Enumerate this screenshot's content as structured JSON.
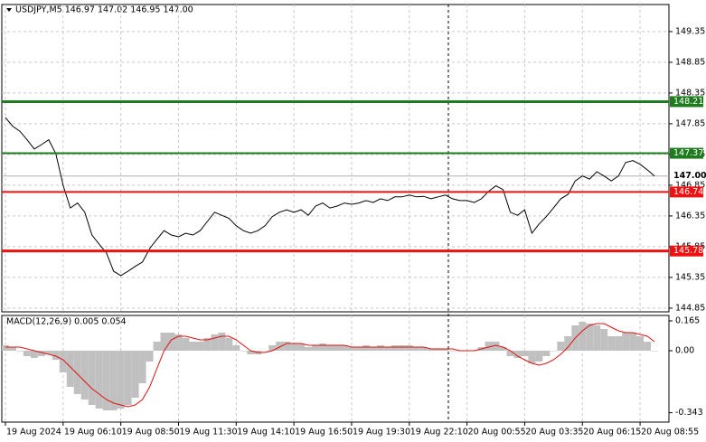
{
  "chart_data": [
    {
      "type": "line",
      "title": "USDJPY,M5  146.97 147.02 146.95 147.00",
      "x": [
        0,
        4,
        8,
        12,
        16,
        20,
        24,
        28,
        32,
        36,
        40,
        44,
        48,
        52,
        56,
        60,
        64,
        68,
        72,
        76,
        80,
        84,
        88,
        92,
        96,
        100,
        104,
        108,
        112,
        116,
        120,
        124,
        128,
        132,
        136,
        140,
        144,
        148,
        152,
        156,
        160,
        164,
        168,
        172,
        176,
        180,
        184,
        188,
        192,
        196,
        200,
        204,
        208,
        212,
        216,
        220,
        224,
        228,
        232,
        236,
        240,
        244,
        248,
        252,
        256,
        260,
        264,
        268,
        272,
        276,
        280,
        284,
        288,
        292,
        296,
        300,
        304,
        308,
        312,
        316,
        320,
        324,
        328,
        332,
        336,
        340,
        344,
        348,
        352,
        356,
        360
      ],
      "series": [
        {
          "color": "#000000",
          "values": [
            147.95,
            147.81,
            147.73,
            147.59,
            147.44,
            147.51,
            147.59,
            147.36,
            146.85,
            146.48,
            146.56,
            146.41,
            146.04,
            145.89,
            145.75,
            145.45,
            145.38,
            145.45,
            145.53,
            145.6,
            145.82,
            145.97,
            146.11,
            146.04,
            146.01,
            146.07,
            146.04,
            146.11,
            146.26,
            146.41,
            146.36,
            146.31,
            146.19,
            146.11,
            146.07,
            146.11,
            146.19,
            146.34,
            146.41,
            146.45,
            146.41,
            146.45,
            146.36,
            146.51,
            146.56,
            146.48,
            146.51,
            146.56,
            146.54,
            146.56,
            146.6,
            146.57,
            146.63,
            146.6,
            146.66,
            146.66,
            146.69,
            146.66,
            146.67,
            146.63,
            146.66,
            146.69,
            146.63,
            146.6,
            146.6,
            146.57,
            146.63,
            146.75,
            146.84,
            146.78,
            146.41,
            146.36,
            146.45,
            146.07,
            146.22,
            146.34,
            146.48,
            146.63,
            146.7,
            146.92,
            147.0,
            146.95,
            147.07,
            147.0,
            146.92,
            147.0,
            147.22,
            147.25,
            147.19,
            147.1,
            147.0
          ]
        }
      ],
      "xlim": [
        -2,
        368
      ],
      "xticks": [
        {
          "value": 0,
          "label": "19 Aug 2024"
        },
        {
          "value": 32,
          "label": "19 Aug 06:10"
        },
        {
          "value": 64,
          "label": "19 Aug 08:50"
        },
        {
          "value": 96,
          "label": "19 Aug 11:30"
        },
        {
          "value": 128,
          "label": "19 Aug 14:10"
        },
        {
          "value": 160,
          "label": "19 Aug 16:50"
        },
        {
          "value": 192,
          "label": "19 Aug 19:30"
        },
        {
          "value": 224,
          "label": "19 Aug 22:10"
        },
        {
          "value": 256,
          "label": "20 Aug 00:55"
        },
        {
          "value": 288,
          "label": "20 Aug 03:35"
        },
        {
          "value": 320,
          "label": "20 Aug 06:15"
        },
        {
          "value": 352,
          "label": "20 Aug 08:55"
        }
      ],
      "ylim": [
        144.79,
        149.79
      ],
      "yticks": [
        149.35,
        148.85,
        148.35,
        147.85,
        147.35,
        146.85,
        146.35,
        145.85,
        145.35,
        144.85
      ],
      "grid": true,
      "levels": [
        {
          "value": 148.21,
          "color": "#1e7b1e"
        },
        {
          "value": 147.37,
          "color": "#1e7b1e"
        },
        {
          "value": 146.74,
          "color": "#ee1111"
        },
        {
          "value": 145.78,
          "color": "#ee1111"
        }
      ],
      "current_price": {
        "value": 147,
        "label": "147.00"
      }
    },
    {
      "type": "macd",
      "title": "MACD(12,26,9) 0.005 0.054",
      "x": [
        0,
        4,
        8,
        12,
        16,
        20,
        24,
        28,
        32,
        36,
        40,
        44,
        48,
        52,
        56,
        60,
        64,
        68,
        72,
        76,
        80,
        84,
        88,
        92,
        96,
        100,
        104,
        108,
        112,
        116,
        120,
        124,
        128,
        132,
        136,
        140,
        144,
        148,
        152,
        156,
        160,
        164,
        168,
        172,
        176,
        180,
        184,
        188,
        192,
        196,
        200,
        204,
        208,
        212,
        216,
        220,
        224,
        228,
        232,
        236,
        240,
        244,
        248,
        252,
        256,
        260,
        264,
        268,
        272,
        276,
        280,
        284,
        288,
        292,
        296,
        300,
        304,
        308,
        312,
        316,
        320,
        324,
        328,
        332,
        336,
        340,
        344,
        348,
        352,
        356,
        360
      ],
      "series": [
        {
          "type": "bar",
          "color": "#c0c0c0",
          "values": [
            0.03,
            0.02,
            0.0,
            -0.03,
            -0.04,
            -0.03,
            -0.02,
            -0.05,
            -0.12,
            -0.2,
            -0.24,
            -0.27,
            -0.3,
            -0.32,
            -0.33,
            -0.33,
            -0.32,
            -0.3,
            -0.26,
            -0.18,
            -0.06,
            0.05,
            0.1,
            0.1,
            0.09,
            0.07,
            0.05,
            0.05,
            0.07,
            0.09,
            0.1,
            0.07,
            0.03,
            0.0,
            -0.02,
            -0.02,
            0.0,
            0.03,
            0.05,
            0.05,
            0.04,
            0.04,
            0.02,
            0.03,
            0.04,
            0.03,
            0.03,
            0.03,
            0.02,
            0.02,
            0.03,
            0.02,
            0.03,
            0.02,
            0.03,
            0.03,
            0.03,
            0.02,
            0.02,
            0.01,
            0.01,
            0.01,
            0.0,
            0.0,
            0.0,
            0.0,
            0.02,
            0.05,
            0.05,
            0.02,
            -0.03,
            -0.04,
            -0.03,
            -0.07,
            -0.06,
            -0.03,
            0.0,
            0.05,
            0.08,
            0.14,
            0.16,
            0.15,
            0.14,
            0.12,
            0.08,
            0.08,
            0.1,
            0.1,
            0.08,
            0.05,
            0.0
          ]
        },
        {
          "type": "line",
          "color": "#e01010",
          "values": [
            0.02,
            0.02,
            0.02,
            0.01,
            0.0,
            -0.01,
            -0.02,
            -0.03,
            -0.05,
            -0.09,
            -0.13,
            -0.17,
            -0.21,
            -0.24,
            -0.27,
            -0.29,
            -0.3,
            -0.31,
            -0.3,
            -0.27,
            -0.2,
            -0.1,
            0.0,
            0.06,
            0.08,
            0.08,
            0.07,
            0.06,
            0.06,
            0.07,
            0.08,
            0.08,
            0.06,
            0.03,
            0.0,
            -0.01,
            -0.01,
            0.0,
            0.02,
            0.04,
            0.04,
            0.04,
            0.03,
            0.03,
            0.03,
            0.03,
            0.03,
            0.03,
            0.02,
            0.02,
            0.02,
            0.02,
            0.02,
            0.02,
            0.02,
            0.02,
            0.02,
            0.02,
            0.02,
            0.01,
            0.01,
            0.01,
            0.01,
            0.0,
            0.0,
            0.0,
            0.01,
            0.02,
            0.03,
            0.02,
            0.0,
            -0.03,
            -0.05,
            -0.07,
            -0.08,
            -0.07,
            -0.05,
            -0.02,
            0.02,
            0.07,
            0.11,
            0.14,
            0.15,
            0.15,
            0.13,
            0.11,
            0.1,
            0.1,
            0.09,
            0.08,
            0.05
          ]
        }
      ],
      "ylim": [
        -0.395,
        0.195
      ],
      "yticks": [
        0.165,
        {
          "value": 0,
          "label": "0.00"
        },
        -0.343
      ]
    }
  ]
}
